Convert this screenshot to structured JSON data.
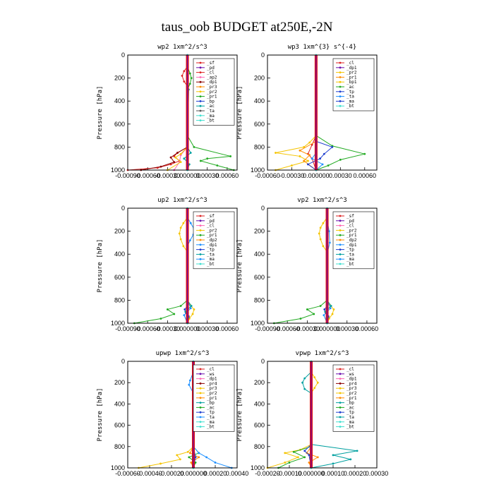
{
  "figure_title": "taus_oob  BUDGET at250E,-2N",
  "chart_data": [
    {
      "type": "line",
      "title": "wp2  1xm^2/s^3",
      "ylabel": "Pressure [hPa]",
      "ylim": [
        1000,
        0
      ],
      "yticks": [
        0,
        200,
        400,
        600,
        800,
        1000
      ],
      "xlim": [
        -0.0009,
        0.00075
      ],
      "xticks": [
        -0.0009,
        -0.0006,
        -0.0003,
        0.0,
        0.0003,
        0.0006
      ],
      "xtick_labels": [
        "-0.00090",
        "-0.00060",
        "-0.00030",
        "0.000000",
        "0.00030",
        "0.00060"
      ],
      "legend": [
        "_sf",
        "_pd",
        "_cl",
        "_ap2",
        "_dp1",
        "_pr3",
        "_pr2",
        "_pr1",
        "_bp",
        "_ac",
        "_ta",
        "_ma",
        "_bt"
      ],
      "series": [
        {
          "name": "_pd",
          "color": "#6a0dad",
          "p": [
            0,
            500,
            1000
          ],
          "v": [
            0,
            0,
            0
          ]
        },
        {
          "name": "_cl",
          "color": "#dd2222",
          "p": [
            100,
            140,
            180,
            230,
            270,
            800,
            850,
            880,
            920,
            950,
            980,
            1000
          ],
          "v": [
            0,
            -5e-05,
            -8e-05,
            -5e-05,
            0,
            0,
            -0.00015,
            -0.0002,
            -0.00012,
            -0.00025,
            -0.00045,
            -0.0009
          ]
        },
        {
          "name": "_ap2",
          "color": "#ff69b4",
          "p": [
            800,
            870,
            930,
            1000
          ],
          "v": [
            0,
            -0.0001,
            -0.00012,
            -0.0002
          ]
        },
        {
          "name": "_dp1",
          "color": "#8b0000",
          "p": [
            800,
            850,
            890,
            930,
            970,
            1000
          ],
          "v": [
            0,
            -0.00015,
            -0.00025,
            -0.0002,
            -0.0004,
            -0.0007
          ]
        },
        {
          "name": "_pr2",
          "color": "#f5c400",
          "p": [
            800,
            860,
            890,
            930,
            1000
          ],
          "v": [
            0,
            -0.0001,
            -0.00018,
            -0.0001,
            -0.0003
          ]
        },
        {
          "name": "_pr1",
          "color": "#22aa22",
          "p": [
            100,
            160,
            200,
            250,
            300,
            700,
            800,
            880,
            900,
            920,
            960,
            1000
          ],
          "v": [
            0,
            4e-05,
            6e-05,
            4e-05,
            0,
            0,
            0.0001,
            0.00065,
            0.0003,
            0.0002,
            0.00045,
            0.0007
          ]
        },
        {
          "name": "_ac",
          "color": "#00a0a0",
          "p": [
            200,
            300,
            800,
            850,
            900,
            950,
            1000
          ],
          "v": [
            0,
            2e-05,
            0,
            5e-05,
            -5e-05,
            3e-05,
            0
          ]
        },
        {
          "name": "_bt",
          "color": "#40e0d0",
          "p": [
            0,
            500,
            1000
          ],
          "v": [
            0,
            0,
            0
          ]
        }
      ]
    },
    {
      "type": "line",
      "title": "wp3  1xm^{3} s^{-4}",
      "ylabel": "Pressure [hPa]",
      "ylim": [
        1000,
        0
      ],
      "yticks": [
        0,
        200,
        400,
        600,
        800,
        1000
      ],
      "xlim": [
        -0.0006,
        0.00075
      ],
      "xticks": [
        -0.0006,
        -0.0003,
        0.0,
        0.0003,
        0.0006
      ],
      "xtick_labels": [
        "-0.00060",
        "-0.00030",
        "0.000000",
        "0.00030",
        "0.00060"
      ],
      "legend": [
        "_cl",
        "_dp1",
        "_pr2",
        "_pr1",
        "_bp1",
        "_ac",
        "_tp",
        "_ta",
        "_ma",
        "_bt"
      ],
      "series": [
        {
          "name": "_cl",
          "color": "#dd2222",
          "p": [
            700,
            780,
            860,
            900,
            1000
          ],
          "v": [
            0,
            -5e-05,
            -0.0001,
            -5e-05,
            0
          ]
        },
        {
          "name": "_pr2",
          "color": "#f5c400",
          "p": [
            700,
            760,
            800,
            850,
            880,
            920,
            960,
            1000
          ],
          "v": [
            0,
            -8e-05,
            -0.00015,
            -0.0005,
            -0.0002,
            -0.0001,
            -0.0003,
            -0.0005
          ]
        },
        {
          "name": "_pr1",
          "color": "#ff8c00",
          "p": [
            750,
            830,
            870,
            920,
            1000
          ],
          "v": [
            0,
            -0.0002,
            -8e-05,
            -0.00015,
            0
          ]
        },
        {
          "name": "_ac",
          "color": "#22aa22",
          "p": [
            700,
            790,
            860,
            910,
            960,
            1000
          ],
          "v": [
            0,
            0.0002,
            0.0006,
            0.0003,
            0.00015,
            0
          ]
        },
        {
          "name": "_tp",
          "color": "#1f3fd0",
          "p": [
            750,
            800,
            860,
            900,
            950,
            1000
          ],
          "v": [
            0,
            0.0002,
            0.0001,
            5e-05,
            -0.0001,
            0
          ]
        },
        {
          "name": "_ta",
          "color": "#1e90ff",
          "p": [
            850,
            900,
            950,
            1000
          ],
          "v": [
            0,
            -5e-05,
            8e-05,
            0
          ]
        },
        {
          "name": "_bt",
          "color": "#40e0d0",
          "p": [
            0,
            500,
            1000
          ],
          "v": [
            0,
            0,
            0
          ]
        }
      ]
    },
    {
      "type": "line",
      "title": "up2  1xm^2/s^3",
      "ylabel": "Pressure [hPa]",
      "ylim": [
        1000,
        0
      ],
      "yticks": [
        0,
        200,
        400,
        600,
        800,
        1000
      ],
      "xlim": [
        -0.0009,
        0.00075
      ],
      "xticks": [
        -0.0009,
        -0.0006,
        -0.0003,
        0.0,
        0.0003,
        0.0006
      ],
      "xtick_labels": [
        "-0.00090",
        "-0.00060",
        "-0.00030",
        "0.000000",
        "0.00030",
        "0.00060"
      ],
      "legend": [
        "_sf",
        "_pd",
        "_cl",
        "_pr2",
        "_pr1",
        "_dp2",
        "_dp1",
        "_tp",
        "_ta",
        "_ma",
        "_bt"
      ],
      "series": [
        {
          "name": "_pr2",
          "color": "#f5c400",
          "p": [
            80,
            130,
            170,
            220,
            270,
            330,
            380,
            800,
            840,
            880,
            920,
            960,
            1000
          ],
          "v": [
            0,
            -6e-05,
            -0.0001,
            -0.00012,
            -0.0001,
            -6e-05,
            0,
            0,
            4e-05,
            0.0001,
            8e-05,
            3e-05,
            0
          ]
        },
        {
          "name": "_pr1",
          "color": "#22aa22",
          "p": [
            800,
            850,
            880,
            920,
            960,
            1000
          ],
          "v": [
            0,
            -0.0001,
            -0.0003,
            -0.0002,
            -0.0004,
            -0.0008
          ]
        },
        {
          "name": "_dp1",
          "color": "#1e90ff",
          "p": [
            80,
            130,
            180,
            230,
            280,
            330,
            800,
            870,
            930,
            1000
          ],
          "v": [
            0,
            5e-05,
            0.0001,
            9e-05,
            4e-05,
            0,
            0,
            5e-05,
            -5e-05,
            0
          ]
        },
        {
          "name": "_tp",
          "color": "#1f3fd0",
          "p": [
            850,
            880,
            910,
            940,
            1000
          ],
          "v": [
            0,
            -4e-05,
            -2e-05,
            2e-05,
            0
          ]
        },
        {
          "name": "_ta",
          "color": "#00a0a0",
          "p": [
            800,
            850,
            900,
            950,
            1000
          ],
          "v": [
            0,
            6e-05,
            -3e-05,
            2e-05,
            0
          ]
        },
        {
          "name": "_bt",
          "color": "#40e0d0",
          "p": [
            0,
            500,
            1000
          ],
          "v": [
            0,
            0,
            0
          ]
        }
      ]
    },
    {
      "type": "line",
      "title": "vp2  1xm^2/s^3",
      "ylabel": "Pressure [hPa]",
      "ylim": [
        1000,
        0
      ],
      "yticks": [
        0,
        200,
        400,
        600,
        800,
        1000
      ],
      "xlim": [
        -0.0009,
        0.00075
      ],
      "xticks": [
        -0.0009,
        -0.0006,
        -0.0003,
        0.0,
        0.0003,
        0.0006
      ],
      "xtick_labels": [
        "-0.00090",
        "-0.00060",
        "-0.00030",
        "0.000000",
        "0.00030",
        "0.00060"
      ],
      "legend": [
        "_sf",
        "_pd",
        "_cl",
        "_pr2",
        "_pr1",
        "_dp2",
        "_dp1",
        "_tp",
        "_ta",
        "_ma",
        "_bt"
      ],
      "series": [
        {
          "name": "_pr2",
          "color": "#f5c400",
          "p": [
            80,
            130,
            170,
            220,
            270,
            330,
            380,
            800,
            840,
            880,
            920,
            960,
            1000
          ],
          "v": [
            0,
            -6e-05,
            -0.0001,
            -0.00012,
            -0.0001,
            -6e-05,
            0,
            0,
            4e-05,
            0.0001,
            8e-05,
            3e-05,
            0
          ]
        },
        {
          "name": "_pr1",
          "color": "#22aa22",
          "p": [
            800,
            850,
            880,
            920,
            960,
            1000
          ],
          "v": [
            0,
            -0.0001,
            -0.0003,
            -0.0002,
            -0.0004,
            -0.0008
          ]
        },
        {
          "name": "_dp1",
          "color": "#1e90ff",
          "p": [
            100,
            200,
            300,
            400,
            800,
            870,
            930,
            1000
          ],
          "v": [
            0,
            3e-05,
            4e-05,
            0,
            0,
            5e-05,
            -5e-05,
            0
          ]
        },
        {
          "name": "_tp",
          "color": "#1f3fd0",
          "p": [
            850,
            880,
            910,
            940,
            1000
          ],
          "v": [
            0,
            -4e-05,
            -2e-05,
            2e-05,
            0
          ]
        },
        {
          "name": "_ta",
          "color": "#00a0a0",
          "p": [
            800,
            850,
            900,
            950,
            1000
          ],
          "v": [
            0,
            6e-05,
            -3e-05,
            2e-05,
            0
          ]
        },
        {
          "name": "_bt",
          "color": "#40e0d0",
          "p": [
            0,
            500,
            1000
          ],
          "v": [
            0,
            0,
            0
          ]
        }
      ]
    },
    {
      "type": "line",
      "title": "upwp  1xm^2/s^3",
      "ylabel": "Pressure [hPa]",
      "ylim": [
        1000,
        0
      ],
      "yticks": [
        0,
        200,
        400,
        600,
        800,
        1000
      ],
      "xlim": [
        -0.0006,
        0.0004
      ],
      "xticks": [
        -0.0006,
        -0.0004,
        -0.0002,
        0.0,
        0.0002,
        0.0004
      ],
      "xtick_labels": [
        "-0.00060",
        "-0.00040",
        "-0.00020",
        "0.000000",
        "0.00020",
        "0.00040"
      ],
      "legend": [
        "_cl",
        "_ws",
        "_dp1",
        "_pr4",
        "_pr3",
        "_pr2",
        "_pr1",
        "_bp",
        "_ac",
        "_tp",
        "_ta",
        "_ma",
        "_bt"
      ],
      "series": [
        {
          "name": "_pr2",
          "color": "#f5c400",
          "p": [
            100,
            150,
            200,
            250,
            300,
            800,
            850,
            880,
            920,
            960,
            1000
          ],
          "v": [
            0,
            4e-05,
            6e-05,
            4e-05,
            0,
            0,
            -5e-05,
            -0.00015,
            -0.00012,
            -0.0003,
            -0.0005
          ]
        },
        {
          "name": "_pr1",
          "color": "#ff8c00",
          "p": [
            800,
            860,
            900,
            950,
            1000
          ],
          "v": [
            0,
            -3e-05,
            5e-05,
            -2e-05,
            0
          ]
        },
        {
          "name": "_ac",
          "color": "#22aa22",
          "p": [
            800,
            860,
            900,
            950,
            1000
          ],
          "v": [
            0,
            5e-05,
            -4e-05,
            2e-05,
            0
          ]
        },
        {
          "name": "_ta",
          "color": "#1e90ff",
          "p": [
            100,
            180,
            220,
            300,
            800,
            860,
            900,
            950,
            1000
          ],
          "v": [
            0,
            -3e-05,
            -4e-05,
            0,
            0,
            5e-05,
            0.00012,
            0.0002,
            0.00035
          ]
        },
        {
          "name": "_tp",
          "color": "#1f3fd0",
          "p": [
            800,
            900,
            1000
          ],
          "v": [
            0,
            2e-05,
            0
          ]
        },
        {
          "name": "_bt",
          "color": "#40e0d0",
          "p": [
            0,
            500,
            1000
          ],
          "v": [
            0,
            0,
            0
          ]
        }
      ]
    },
    {
      "type": "line",
      "title": "vpwp  1xm^2/s^3",
      "ylabel": "Pressure [hPa]",
      "ylim": [
        1000,
        0
      ],
      "yticks": [
        0,
        200,
        400,
        600,
        800,
        1000
      ],
      "xlim": [
        -0.0002,
        0.0003
      ],
      "xticks": [
        -0.0002,
        -0.0001,
        0.0,
        0.0001,
        0.0002,
        0.0003
      ],
      "xtick_labels": [
        "-0.00020",
        "-0.00010",
        "0.000000",
        "0.00010",
        "0.00020",
        "0.00030"
      ],
      "legend": [
        "_cl",
        "_ws",
        "_dp1",
        "_pr4",
        "_pr3",
        "_pr2",
        "_pr1",
        "_bp",
        "_ac",
        "_tp",
        "_ta",
        "_ma",
        "_bt"
      ],
      "series": [
        {
          "name": "_pr2",
          "color": "#f5c400",
          "p": [
            100,
            150,
            200,
            250,
            300,
            780,
            830,
            860,
            900,
            950,
            1000
          ],
          "v": [
            0,
            1.5e-05,
            3e-05,
            1.5e-05,
            0,
            0,
            -5e-05,
            -0.00012,
            -6e-05,
            -0.00012,
            -0.0002
          ]
        },
        {
          "name": "_pr1",
          "color": "#ff8c00",
          "p": [
            800,
            860,
            900,
            950,
            1000
          ],
          "v": [
            0,
            -2e-05,
            3e-05,
            -1e-05,
            0
          ]
        },
        {
          "name": "_ac",
          "color": "#22aa22",
          "p": [
            800,
            850,
            900,
            950,
            1000
          ],
          "v": [
            0,
            -8e-05,
            -3e-05,
            -0.0001,
            -0.00015
          ]
        },
        {
          "name": "_ta",
          "color": "#00a0a0",
          "p": [
            100,
            160,
            200,
            260,
            300,
            780,
            840,
            880,
            920,
            960,
            1000
          ],
          "v": [
            0,
            -3e-05,
            -4e-05,
            -3e-05,
            0,
            0,
            0.00021,
            0.0001,
            0.00018,
            0.0001,
            0
          ]
        },
        {
          "name": "_tp",
          "color": "#1f3fd0",
          "p": [
            780,
            840,
            880,
            1000
          ],
          "v": [
            0,
            -3e-05,
            -1e-05,
            0
          ]
        },
        {
          "name": "_bt",
          "color": "#40e0d0",
          "p": [
            0,
            500,
            1000
          ],
          "v": [
            0,
            0,
            0
          ]
        }
      ]
    }
  ]
}
